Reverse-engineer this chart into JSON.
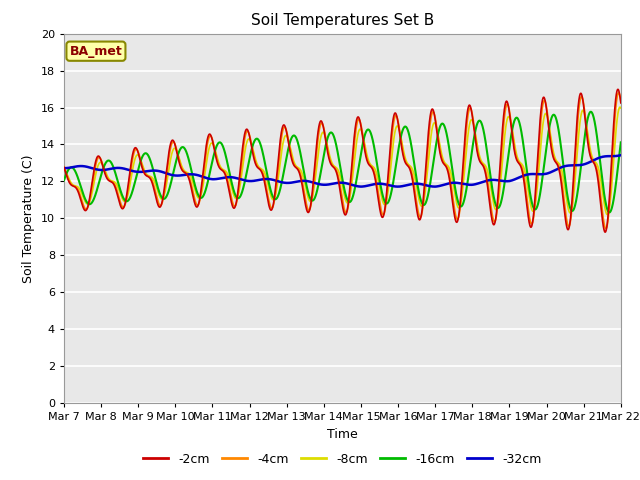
{
  "title": "Soil Temperatures Set B",
  "xlabel": "Time",
  "ylabel": "Soil Temperature (C)",
  "annotation": "BA_met",
  "ylim": [
    0,
    20
  ],
  "yticks": [
    0,
    2,
    4,
    6,
    8,
    10,
    12,
    14,
    16,
    18,
    20
  ],
  "xtick_labels": [
    "Mar 7",
    "Mar 8",
    "Mar 9",
    "Mar 10",
    "Mar 11",
    "Mar 12",
    "Mar 13",
    "Mar 14",
    "Mar 15",
    "Mar 16",
    "Mar 17",
    "Mar 18",
    "Mar 19",
    "Mar 20",
    "Mar 21",
    "Mar 22"
  ],
  "series": {
    "-2cm": {
      "color": "#CC0000",
      "linewidth": 1.2
    },
    "-4cm": {
      "color": "#FF8800",
      "linewidth": 1.2
    },
    "-8cm": {
      "color": "#DDDD00",
      "linewidth": 1.2
    },
    "-16cm": {
      "color": "#00BB00",
      "linewidth": 1.5
    },
    "-32cm": {
      "color": "#0000CC",
      "linewidth": 1.8
    }
  },
  "bg_color": "#E8E8E8",
  "fig_bg": "#FFFFFF",
  "grid_color": "#FFFFFF"
}
